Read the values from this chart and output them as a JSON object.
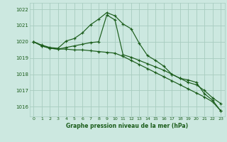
{
  "title": "Graphe pression niveau de la mer (hPa)",
  "bg_color": "#cce8e0",
  "grid_color": "#a8ccbf",
  "line_color": "#1a5c1a",
  "xlim": [
    -0.5,
    23.5
  ],
  "ylim": [
    1015.4,
    1022.4
  ],
  "yticks": [
    1016,
    1017,
    1018,
    1019,
    1020,
    1021,
    1022
  ],
  "xticks": [
    0,
    1,
    2,
    3,
    4,
    5,
    6,
    7,
    8,
    9,
    10,
    11,
    12,
    13,
    14,
    15,
    16,
    17,
    18,
    19,
    20,
    21,
    22,
    23
  ],
  "series1_x": [
    0,
    1,
    2,
    3,
    4,
    5,
    6,
    7,
    8,
    9,
    10,
    11,
    12,
    13,
    14,
    15,
    16,
    17,
    18,
    19,
    20,
    21,
    22,
    23
  ],
  "series1_y": [
    1020.0,
    1019.8,
    1019.65,
    1019.6,
    1020.05,
    1020.2,
    1020.55,
    1021.05,
    1021.4,
    1021.8,
    1021.6,
    1021.1,
    1020.8,
    1019.9,
    1019.15,
    1018.85,
    1018.5,
    1018.0,
    1017.75,
    1017.65,
    1017.5,
    1016.8,
    1016.4,
    1015.75
  ],
  "series2_x": [
    0,
    1,
    2,
    3,
    4,
    5,
    6,
    7,
    8,
    9,
    10,
    11,
    12,
    13,
    14,
    15,
    16,
    17,
    18,
    19,
    20,
    21,
    22,
    23
  ],
  "series2_y": [
    1020.0,
    1019.75,
    1019.6,
    1019.55,
    1019.65,
    1019.75,
    1019.85,
    1019.95,
    1020.0,
    1021.65,
    1021.35,
    1019.2,
    1019.05,
    1018.85,
    1018.65,
    1018.45,
    1018.25,
    1018.0,
    1017.75,
    1017.5,
    1017.35,
    1017.0,
    1016.55,
    1016.2
  ],
  "series3_x": [
    0,
    1,
    2,
    3,
    4,
    5,
    6,
    7,
    8,
    9,
    10,
    11,
    12,
    13,
    14,
    15,
    16,
    17,
    18,
    19,
    20,
    21,
    22,
    23
  ],
  "series3_y": [
    1020.0,
    1019.75,
    1019.6,
    1019.55,
    1019.55,
    1019.5,
    1019.5,
    1019.45,
    1019.4,
    1019.35,
    1019.3,
    1019.1,
    1018.85,
    1018.6,
    1018.35,
    1018.1,
    1017.85,
    1017.6,
    1017.35,
    1017.1,
    1016.85,
    1016.6,
    1016.3,
    1015.75
  ]
}
